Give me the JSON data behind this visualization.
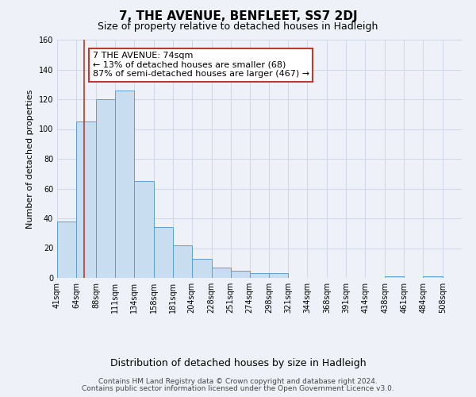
{
  "title": "7, THE AVENUE, BENFLEET, SS7 2DJ",
  "subtitle": "Size of property relative to detached houses in Hadleigh",
  "xlabel": "Distribution of detached houses by size in Hadleigh",
  "ylabel": "Number of detached properties",
  "bar_left_edges": [
    41,
    64,
    88,
    111,
    134,
    158,
    181,
    204,
    228,
    251,
    274,
    298,
    321,
    344,
    368,
    391,
    414,
    438,
    461,
    484
  ],
  "bar_widths": [
    23,
    24,
    23,
    23,
    24,
    23,
    23,
    24,
    23,
    23,
    24,
    23,
    23,
    24,
    23,
    23,
    24,
    23,
    23,
    24
  ],
  "bar_heights": [
    38,
    105,
    120,
    126,
    65,
    34,
    22,
    13,
    7,
    5,
    3,
    3,
    0,
    0,
    0,
    0,
    0,
    1,
    0,
    1
  ],
  "bar_color": "#c9ddf0",
  "bar_edge_color": "#5a9fd4",
  "ylim": [
    0,
    160
  ],
  "yticks": [
    0,
    20,
    40,
    60,
    80,
    100,
    120,
    140,
    160
  ],
  "x_tick_labels": [
    "41sqm",
    "64sqm",
    "88sqm",
    "111sqm",
    "134sqm",
    "158sqm",
    "181sqm",
    "204sqm",
    "228sqm",
    "251sqm",
    "274sqm",
    "298sqm",
    "321sqm",
    "344sqm",
    "368sqm",
    "391sqm",
    "414sqm",
    "438sqm",
    "461sqm",
    "484sqm",
    "508sqm"
  ],
  "vline_x": 74,
  "vline_color": "#c0392b",
  "annotation_text": "7 THE AVENUE: 74sqm\n← 13% of detached houses are smaller (68)\n87% of semi-detached houses are larger (467) →",
  "annotation_box_color": "#ffffff",
  "annotation_box_edgecolor": "#c0392b",
  "footnote1": "Contains HM Land Registry data © Crown copyright and database right 2024.",
  "footnote2": "Contains public sector information licensed under the Open Government Licence v3.0.",
  "background_color": "#eef2f8",
  "plot_bg_color": "#eef2f8",
  "grid_color": "#d0d8e8",
  "title_fontsize": 11,
  "subtitle_fontsize": 9,
  "xlabel_fontsize": 9,
  "ylabel_fontsize": 8,
  "tick_fontsize": 7,
  "footnote_fontsize": 6.5,
  "annotation_fontsize": 8
}
